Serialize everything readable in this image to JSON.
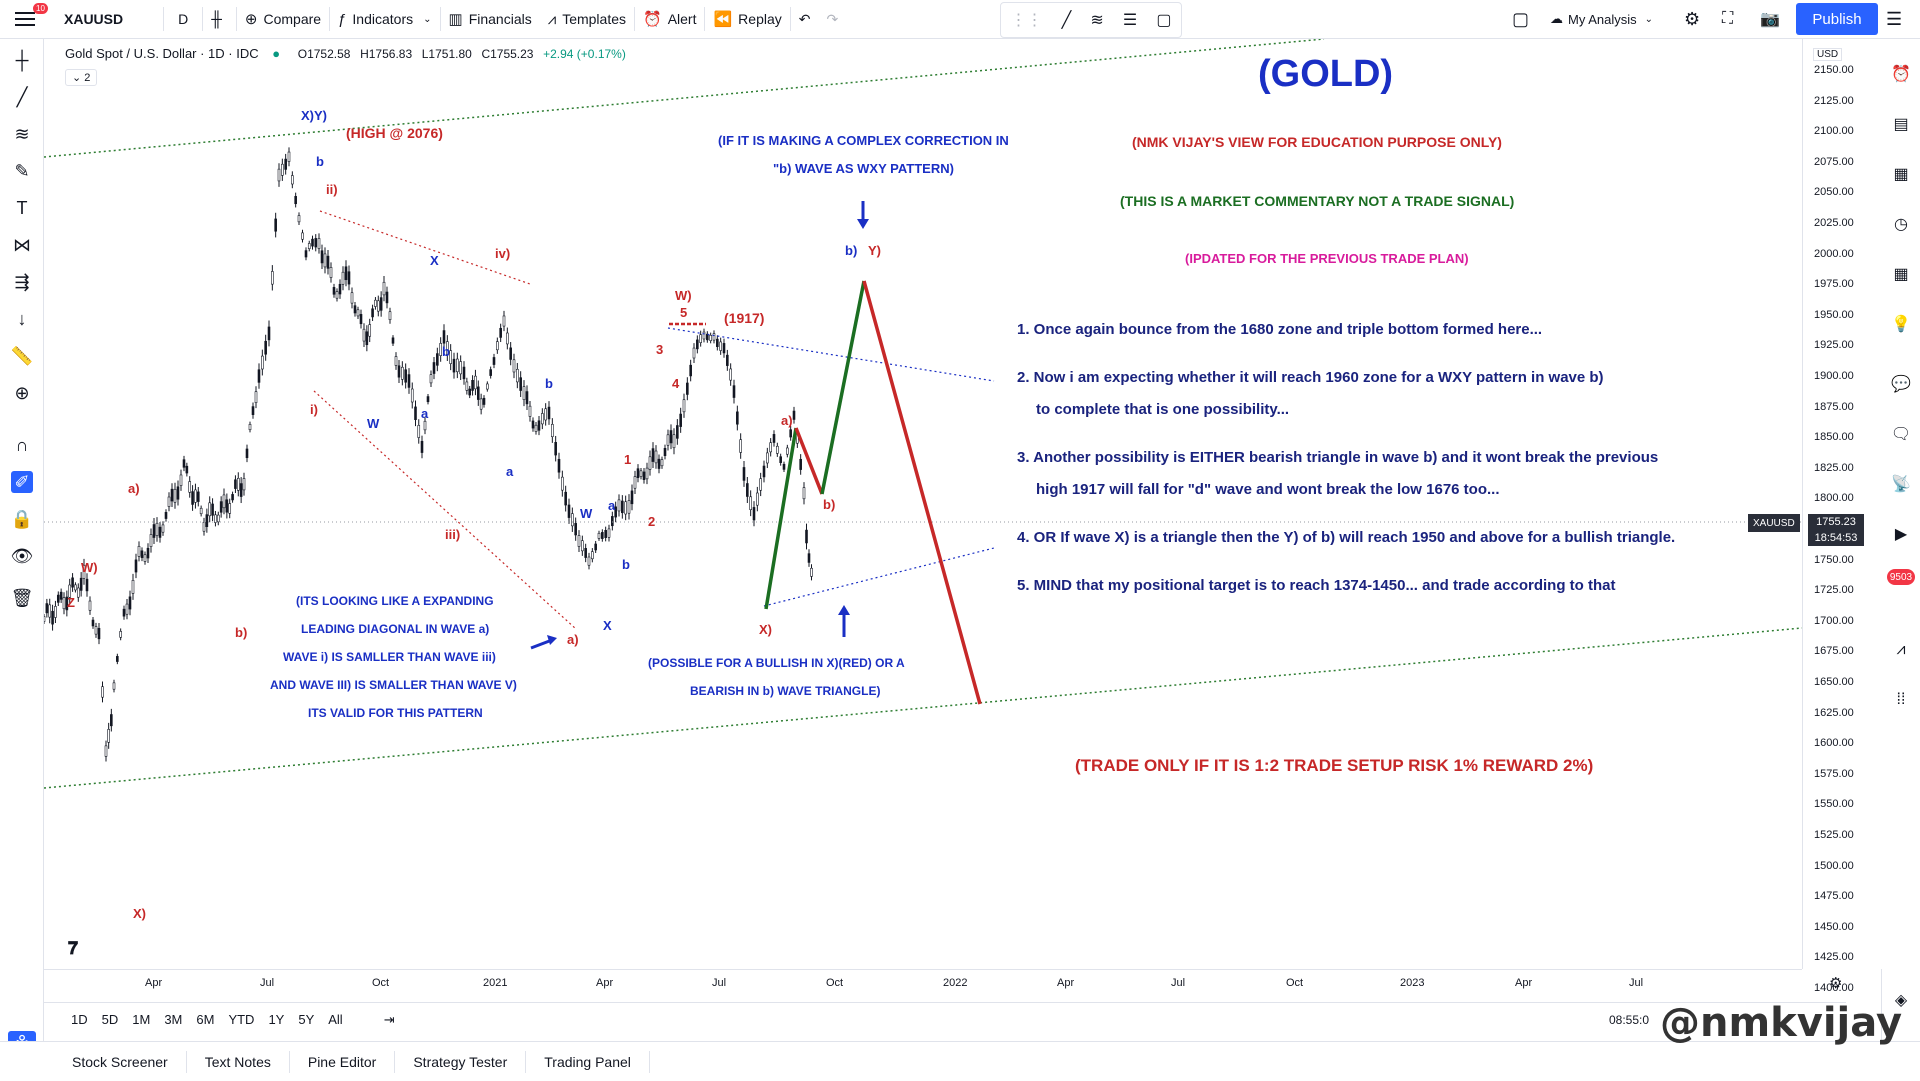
{
  "topbar": {
    "notif_count": "10",
    "symbol": "XAUUSD",
    "interval": "D",
    "compare": "Compare",
    "indicators": "Indicators",
    "financials": "Financials",
    "templates": "Templates",
    "alert": "Alert",
    "replay": "Replay",
    "my_analysis": "My Analysis",
    "publish": "Publish"
  },
  "legend": {
    "title": "Gold Spot / U.S. Dollar · 1D · IDC",
    "open": "O1752.58",
    "high": "H1756.83",
    "low": "L1751.80",
    "close": "C1755.23",
    "change": "+2.94 (+0.17%)",
    "indicator_count": "2"
  },
  "price_axis": {
    "currency": "USD",
    "labels": [
      "2150.00",
      "2125.00",
      "2100.00",
      "2075.00",
      "2050.00",
      "2025.00",
      "2000.00",
      "1975.00",
      "1950.00",
      "1925.00",
      "1900.00",
      "1875.00",
      "1850.00",
      "1825.00",
      "1800.00",
      "1775.00",
      "1750.00",
      "1725.00",
      "1700.00",
      "1675.00",
      "1650.00",
      "1625.00",
      "1600.00",
      "1575.00",
      "1550.00",
      "1525.00",
      "1500.00",
      "1475.00",
      "1450.00",
      "1425.00",
      "1400.00"
    ],
    "tag_symbol": "XAUUSD",
    "tag_price": "1755.23",
    "tag_time": "18:54:53"
  },
  "time_axis": {
    "labels": [
      "Apr",
      "Jul",
      "Oct",
      "2021",
      "Apr",
      "Jul",
      "Oct",
      "2022",
      "Apr",
      "Jul",
      "Oct",
      "2023",
      "Apr",
      "Jul"
    ]
  },
  "rangebar": {
    "ranges": [
      "1D",
      "5D",
      "1M",
      "3M",
      "6M",
      "YTD",
      "1Y",
      "5Y",
      "All"
    ],
    "clock": "08:55:0"
  },
  "bottombar": {
    "tabs": [
      "Stock Screener",
      "Text Notes",
      "Pine Editor",
      "Strategy Tester",
      "Trading Panel"
    ]
  },
  "annotations": {
    "title": "(GOLD)",
    "view": "(NMK VIJAY'S VIEW FOR EDUCATION PURPOSE ONLY)",
    "commentary": "(THIS IS A MARKET COMMENTARY NOT A TRADE SIGNAL)",
    "updated": "(IPDATED FOR THE PREVIOUS TRADE PLAN)",
    "complex1": "(IF IT IS MAKING A COMPLEX CORRECTION IN",
    "complex2": "\"b) WAVE AS WXY PATTERN)",
    "high": "(HIGH @ 2076)",
    "p1917": "(1917)",
    "p1": "1. Once again bounce from the 1680 zone and triple bottom formed here...",
    "p2a": "2. Now i am expecting whether it will reach 1960 zone for a WXY pattern in wave b)",
    "p2b": "to complete that is one possibility...",
    "p3a": "3. Another possibility is EITHER bearish triangle in wave b) and it wont break the previous",
    "p3b": "high 1917 will fall for \"d\" wave and wont break the low 1676 too...",
    "p4": "4. OR If wave X) is a triangle then the Y) of b) will reach 1950 and above for a bullish triangle.",
    "p5": "5. MIND that my positional target is to reach 1374-1450... and trade according to that",
    "diag1": "(ITS LOOKING LIKE A EXPANDING",
    "diag2": "LEADING DIAGONAL IN WAVE a)",
    "diag3": "WAVE i) IS SAMLLER THAN WAVE iii)",
    "diag4": "AND WAVE III) IS SMALLER THAN WAVE V)",
    "diag5": "ITS VALID FOR THIS PATTERN",
    "bull1": "(POSSIBLE FOR A BULLISH IN X)(RED) OR A",
    "bull2": "BEARISH IN b) WAVE TRIANGLE)",
    "trade": "(TRADE ONLY IF IT IS 1:2 TRADE SETUP RISK 1% REWARD 2%)",
    "watermark": "@nmkvijay"
  },
  "wave_labels": {
    "xy": "X)Y)",
    "b1": "b",
    "ii": "ii)",
    "iv": "iv)",
    "x1": "X",
    "i": "i)",
    "w1": "W",
    "a1": "a",
    "b2": "b",
    "a2": "a",
    "iii": "iii)",
    "b3": "b",
    "w2": "W",
    "a3": "a",
    "b4": "b",
    "x2": "X",
    "a_red": "a)",
    "ww": "W)",
    "z": "Z",
    "b_red": "b)",
    "x_bottom": "X)",
    "a_red2": "a)",
    "n1": "1",
    "n2": "2",
    "n3": "3",
    "n4": "4",
    "n5": "5",
    "w_top": "W)",
    "x_red": "X)",
    "a_proj": "a)",
    "b_proj": "b)",
    "by": "b)",
    "y": "Y)"
  },
  "colors": {
    "accent": "#2962ff",
    "bull": "#1b6e22",
    "bear": "#c62828",
    "annotation_blue": "#1a2fc4"
  }
}
